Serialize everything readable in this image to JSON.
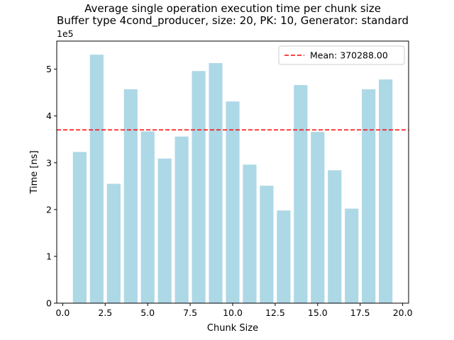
{
  "chart_data": {
    "type": "bar",
    "title": "Average single operation execution time per chunk size",
    "subtitle": "Buffer type 4cond_producer, size: 20, PK: 10, Generator: standard",
    "xlabel": "Chunk Size",
    "ylabel": "Time [ns]",
    "y_offset_label": "1e5",
    "y_scale": 100000,
    "xlim": [
      -0.35,
      20.35
    ],
    "ylim": [
      0,
      560000
    ],
    "x_ticks": [
      0.0,
      2.5,
      5.0,
      7.5,
      10.0,
      12.5,
      15.0,
      17.5,
      20.0
    ],
    "x_tick_labels": [
      "0.0",
      "2.5",
      "5.0",
      "7.5",
      "10.0",
      "12.5",
      "15.0",
      "17.5",
      "20.0"
    ],
    "y_ticks": [
      0,
      100000,
      200000,
      300000,
      400000,
      500000
    ],
    "y_tick_labels": [
      "0",
      "1",
      "2",
      "3",
      "4",
      "5"
    ],
    "x": [
      1,
      2,
      3,
      4,
      5,
      6,
      7,
      8,
      9,
      10,
      11,
      12,
      13,
      14,
      15,
      16,
      17,
      18,
      19
    ],
    "values": [
      323000,
      531000,
      255000,
      457000,
      367000,
      309000,
      356000,
      496000,
      513000,
      431000,
      296000,
      251000,
      198000,
      466000,
      366000,
      284000,
      202000,
      457000,
      478000
    ],
    "bar_width": 0.8,
    "bar_color": "#add8e6",
    "mean": {
      "value": 370288.0,
      "label": "Mean: 370288.00",
      "color": "#ff0000"
    },
    "legend_position": "top-right",
    "grid": false
  }
}
